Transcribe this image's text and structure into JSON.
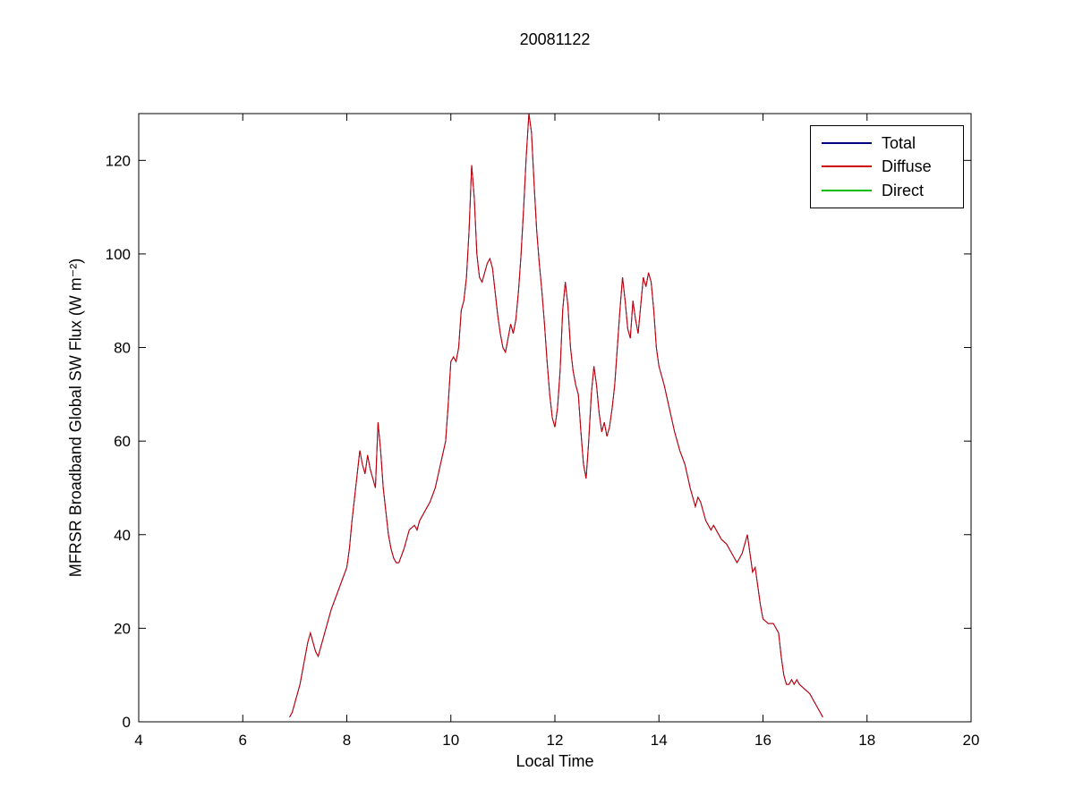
{
  "figure": {
    "title": "20081122"
  },
  "legend": {
    "entries": [
      {
        "label": "Total",
        "color": "#000080"
      },
      {
        "label": "Diffuse",
        "color": "#CC0000"
      },
      {
        "label": "Direct",
        "color": "#00BB00"
      }
    ]
  },
  "chart_data": {
    "type": "line",
    "title": "20081122",
    "xlabel": "Local Time",
    "ylabel": "MFRSR Broadband Global SW Flux (W m⁻²)",
    "xlim": [
      4,
      20
    ],
    "ylim": [
      0,
      130
    ],
    "xticks": [
      4,
      6,
      8,
      10,
      12,
      14,
      16,
      18,
      20
    ],
    "yticks": [
      0,
      20,
      40,
      60,
      80,
      100,
      120
    ],
    "grid": false,
    "legend_position": "top-right",
    "background": "#ffffff",
    "axis_color": "#000000",
    "series": [
      {
        "name": "Total",
        "color": "#000080",
        "points_same_as": "Diffuse",
        "note": "overlaps Diffuse curve (Direct is zero)"
      },
      {
        "name": "Diffuse",
        "color": "#CC0000",
        "points": [
          [
            6.9,
            1
          ],
          [
            6.95,
            2
          ],
          [
            7.0,
            4
          ],
          [
            7.05,
            6
          ],
          [
            7.1,
            8
          ],
          [
            7.15,
            11
          ],
          [
            7.2,
            14
          ],
          [
            7.25,
            17
          ],
          [
            7.3,
            19
          ],
          [
            7.35,
            17
          ],
          [
            7.4,
            15
          ],
          [
            7.45,
            14
          ],
          [
            7.5,
            16
          ],
          [
            7.55,
            18
          ],
          [
            7.6,
            20
          ],
          [
            7.7,
            24
          ],
          [
            7.8,
            27
          ],
          [
            7.9,
            30
          ],
          [
            8.0,
            33
          ],
          [
            8.05,
            37
          ],
          [
            8.1,
            43
          ],
          [
            8.15,
            48
          ],
          [
            8.2,
            53
          ],
          [
            8.25,
            58
          ],
          [
            8.3,
            55
          ],
          [
            8.35,
            53
          ],
          [
            8.4,
            57
          ],
          [
            8.45,
            54
          ],
          [
            8.5,
            52
          ],
          [
            8.55,
            50
          ],
          [
            8.6,
            64
          ],
          [
            8.65,
            58
          ],
          [
            8.7,
            50
          ],
          [
            8.75,
            45
          ],
          [
            8.8,
            40
          ],
          [
            8.85,
            37
          ],
          [
            8.9,
            35
          ],
          [
            8.95,
            34
          ],
          [
            9.0,
            34
          ],
          [
            9.1,
            37
          ],
          [
            9.2,
            41
          ],
          [
            9.3,
            42
          ],
          [
            9.35,
            41
          ],
          [
            9.4,
            43
          ],
          [
            9.5,
            45
          ],
          [
            9.6,
            47
          ],
          [
            9.7,
            50
          ],
          [
            9.8,
            55
          ],
          [
            9.9,
            60
          ],
          [
            9.95,
            68
          ],
          [
            10.0,
            77
          ],
          [
            10.05,
            78
          ],
          [
            10.1,
            77
          ],
          [
            10.15,
            80
          ],
          [
            10.2,
            88
          ],
          [
            10.25,
            90
          ],
          [
            10.3,
            95
          ],
          [
            10.35,
            105
          ],
          [
            10.4,
            119
          ],
          [
            10.45,
            112
          ],
          [
            10.5,
            100
          ],
          [
            10.55,
            95
          ],
          [
            10.6,
            94
          ],
          [
            10.7,
            98
          ],
          [
            10.75,
            99
          ],
          [
            10.8,
            97
          ],
          [
            10.85,
            92
          ],
          [
            10.9,
            87
          ],
          [
            10.95,
            83
          ],
          [
            11.0,
            80
          ],
          [
            11.05,
            79
          ],
          [
            11.1,
            82
          ],
          [
            11.15,
            85
          ],
          [
            11.2,
            83
          ],
          [
            11.25,
            86
          ],
          [
            11.3,
            92
          ],
          [
            11.35,
            100
          ],
          [
            11.4,
            110
          ],
          [
            11.45,
            121
          ],
          [
            11.5,
            130
          ],
          [
            11.55,
            126
          ],
          [
            11.6,
            115
          ],
          [
            11.65,
            105
          ],
          [
            11.7,
            98
          ],
          [
            11.75,
            92
          ],
          [
            11.8,
            85
          ],
          [
            11.85,
            77
          ],
          [
            11.9,
            70
          ],
          [
            11.95,
            65
          ],
          [
            12.0,
            63
          ],
          [
            12.05,
            67
          ],
          [
            12.1,
            75
          ],
          [
            12.15,
            88
          ],
          [
            12.2,
            94
          ],
          [
            12.25,
            89
          ],
          [
            12.3,
            80
          ],
          [
            12.35,
            75
          ],
          [
            12.4,
            72
          ],
          [
            12.45,
            70
          ],
          [
            12.5,
            62
          ],
          [
            12.55,
            55
          ],
          [
            12.6,
            52
          ],
          [
            12.65,
            60
          ],
          [
            12.7,
            70
          ],
          [
            12.75,
            76
          ],
          [
            12.8,
            72
          ],
          [
            12.85,
            66
          ],
          [
            12.9,
            62
          ],
          [
            12.95,
            64
          ],
          [
            13.0,
            61
          ],
          [
            13.05,
            63
          ],
          [
            13.1,
            67
          ],
          [
            13.15,
            72
          ],
          [
            13.2,
            80
          ],
          [
            13.25,
            88
          ],
          [
            13.3,
            95
          ],
          [
            13.35,
            90
          ],
          [
            13.4,
            84
          ],
          [
            13.45,
            82
          ],
          [
            13.5,
            90
          ],
          [
            13.55,
            86
          ],
          [
            13.6,
            83
          ],
          [
            13.65,
            89
          ],
          [
            13.7,
            95
          ],
          [
            13.75,
            93
          ],
          [
            13.8,
            96
          ],
          [
            13.85,
            94
          ],
          [
            13.9,
            88
          ],
          [
            13.95,
            80
          ],
          [
            14.0,
            76
          ],
          [
            14.1,
            72
          ],
          [
            14.2,
            67
          ],
          [
            14.3,
            62
          ],
          [
            14.4,
            58
          ],
          [
            14.5,
            55
          ],
          [
            14.6,
            50
          ],
          [
            14.7,
            46
          ],
          [
            14.75,
            48
          ],
          [
            14.8,
            47
          ],
          [
            14.9,
            43
          ],
          [
            15.0,
            41
          ],
          [
            15.05,
            42
          ],
          [
            15.1,
            41
          ],
          [
            15.2,
            39
          ],
          [
            15.3,
            38
          ],
          [
            15.4,
            36
          ],
          [
            15.5,
            34
          ],
          [
            15.6,
            36
          ],
          [
            15.7,
            40
          ],
          [
            15.75,
            36
          ],
          [
            15.8,
            32
          ],
          [
            15.85,
            33
          ],
          [
            15.9,
            29
          ],
          [
            15.95,
            25
          ],
          [
            16.0,
            22
          ],
          [
            16.1,
            21
          ],
          [
            16.2,
            21
          ],
          [
            16.3,
            19
          ],
          [
            16.35,
            14
          ],
          [
            16.4,
            10
          ],
          [
            16.45,
            8
          ],
          [
            16.5,
            8
          ],
          [
            16.55,
            9
          ],
          [
            16.6,
            8
          ],
          [
            16.65,
            9
          ],
          [
            16.7,
            8
          ],
          [
            16.8,
            7
          ],
          [
            16.9,
            6
          ],
          [
            16.95,
            5
          ],
          [
            17.0,
            4
          ],
          [
            17.05,
            3
          ],
          [
            17.1,
            2
          ],
          [
            17.15,
            1
          ]
        ]
      },
      {
        "name": "Direct",
        "color": "#00BB00",
        "points": [
          [
            6.9,
            0
          ],
          [
            16.9,
            0
          ]
        ]
      }
    ]
  }
}
